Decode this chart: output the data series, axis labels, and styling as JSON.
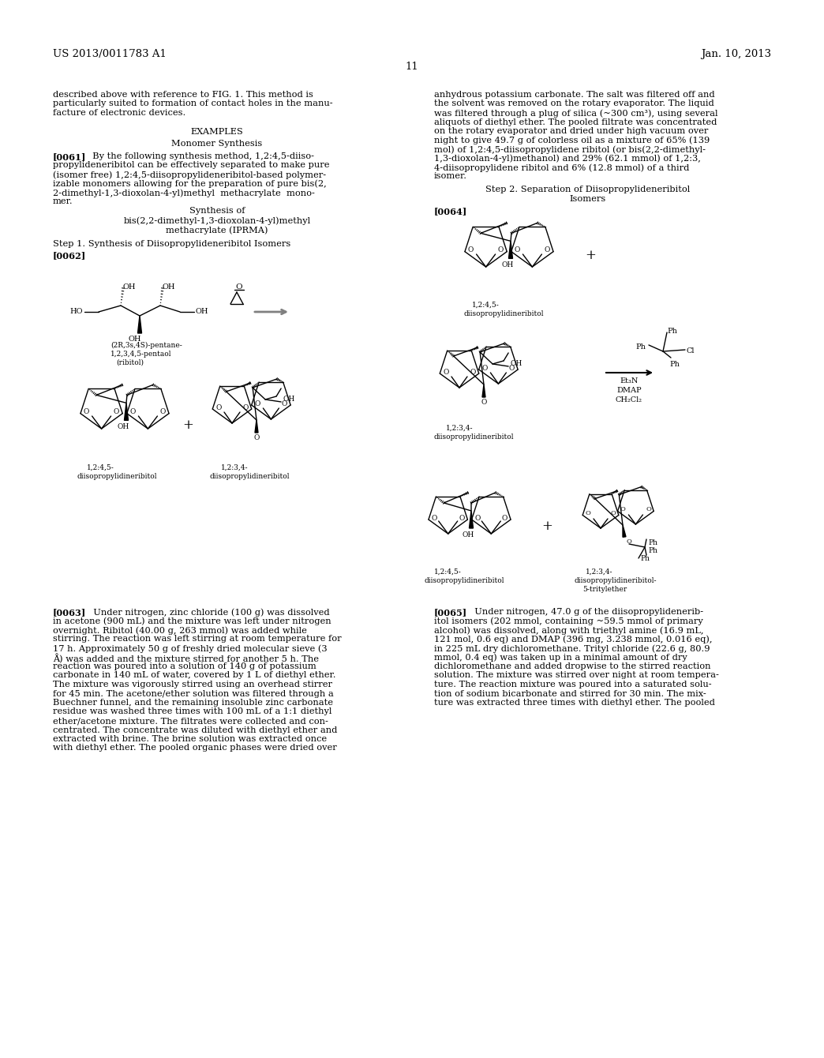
{
  "background_color": "#ffffff",
  "header_left": "US 2013/0011783 A1",
  "header_right": "Jan. 10, 2013",
  "page_number": "11",
  "font_size_body": 8.2,
  "font_size_header": 9.0,
  "text_color": "#000000"
}
